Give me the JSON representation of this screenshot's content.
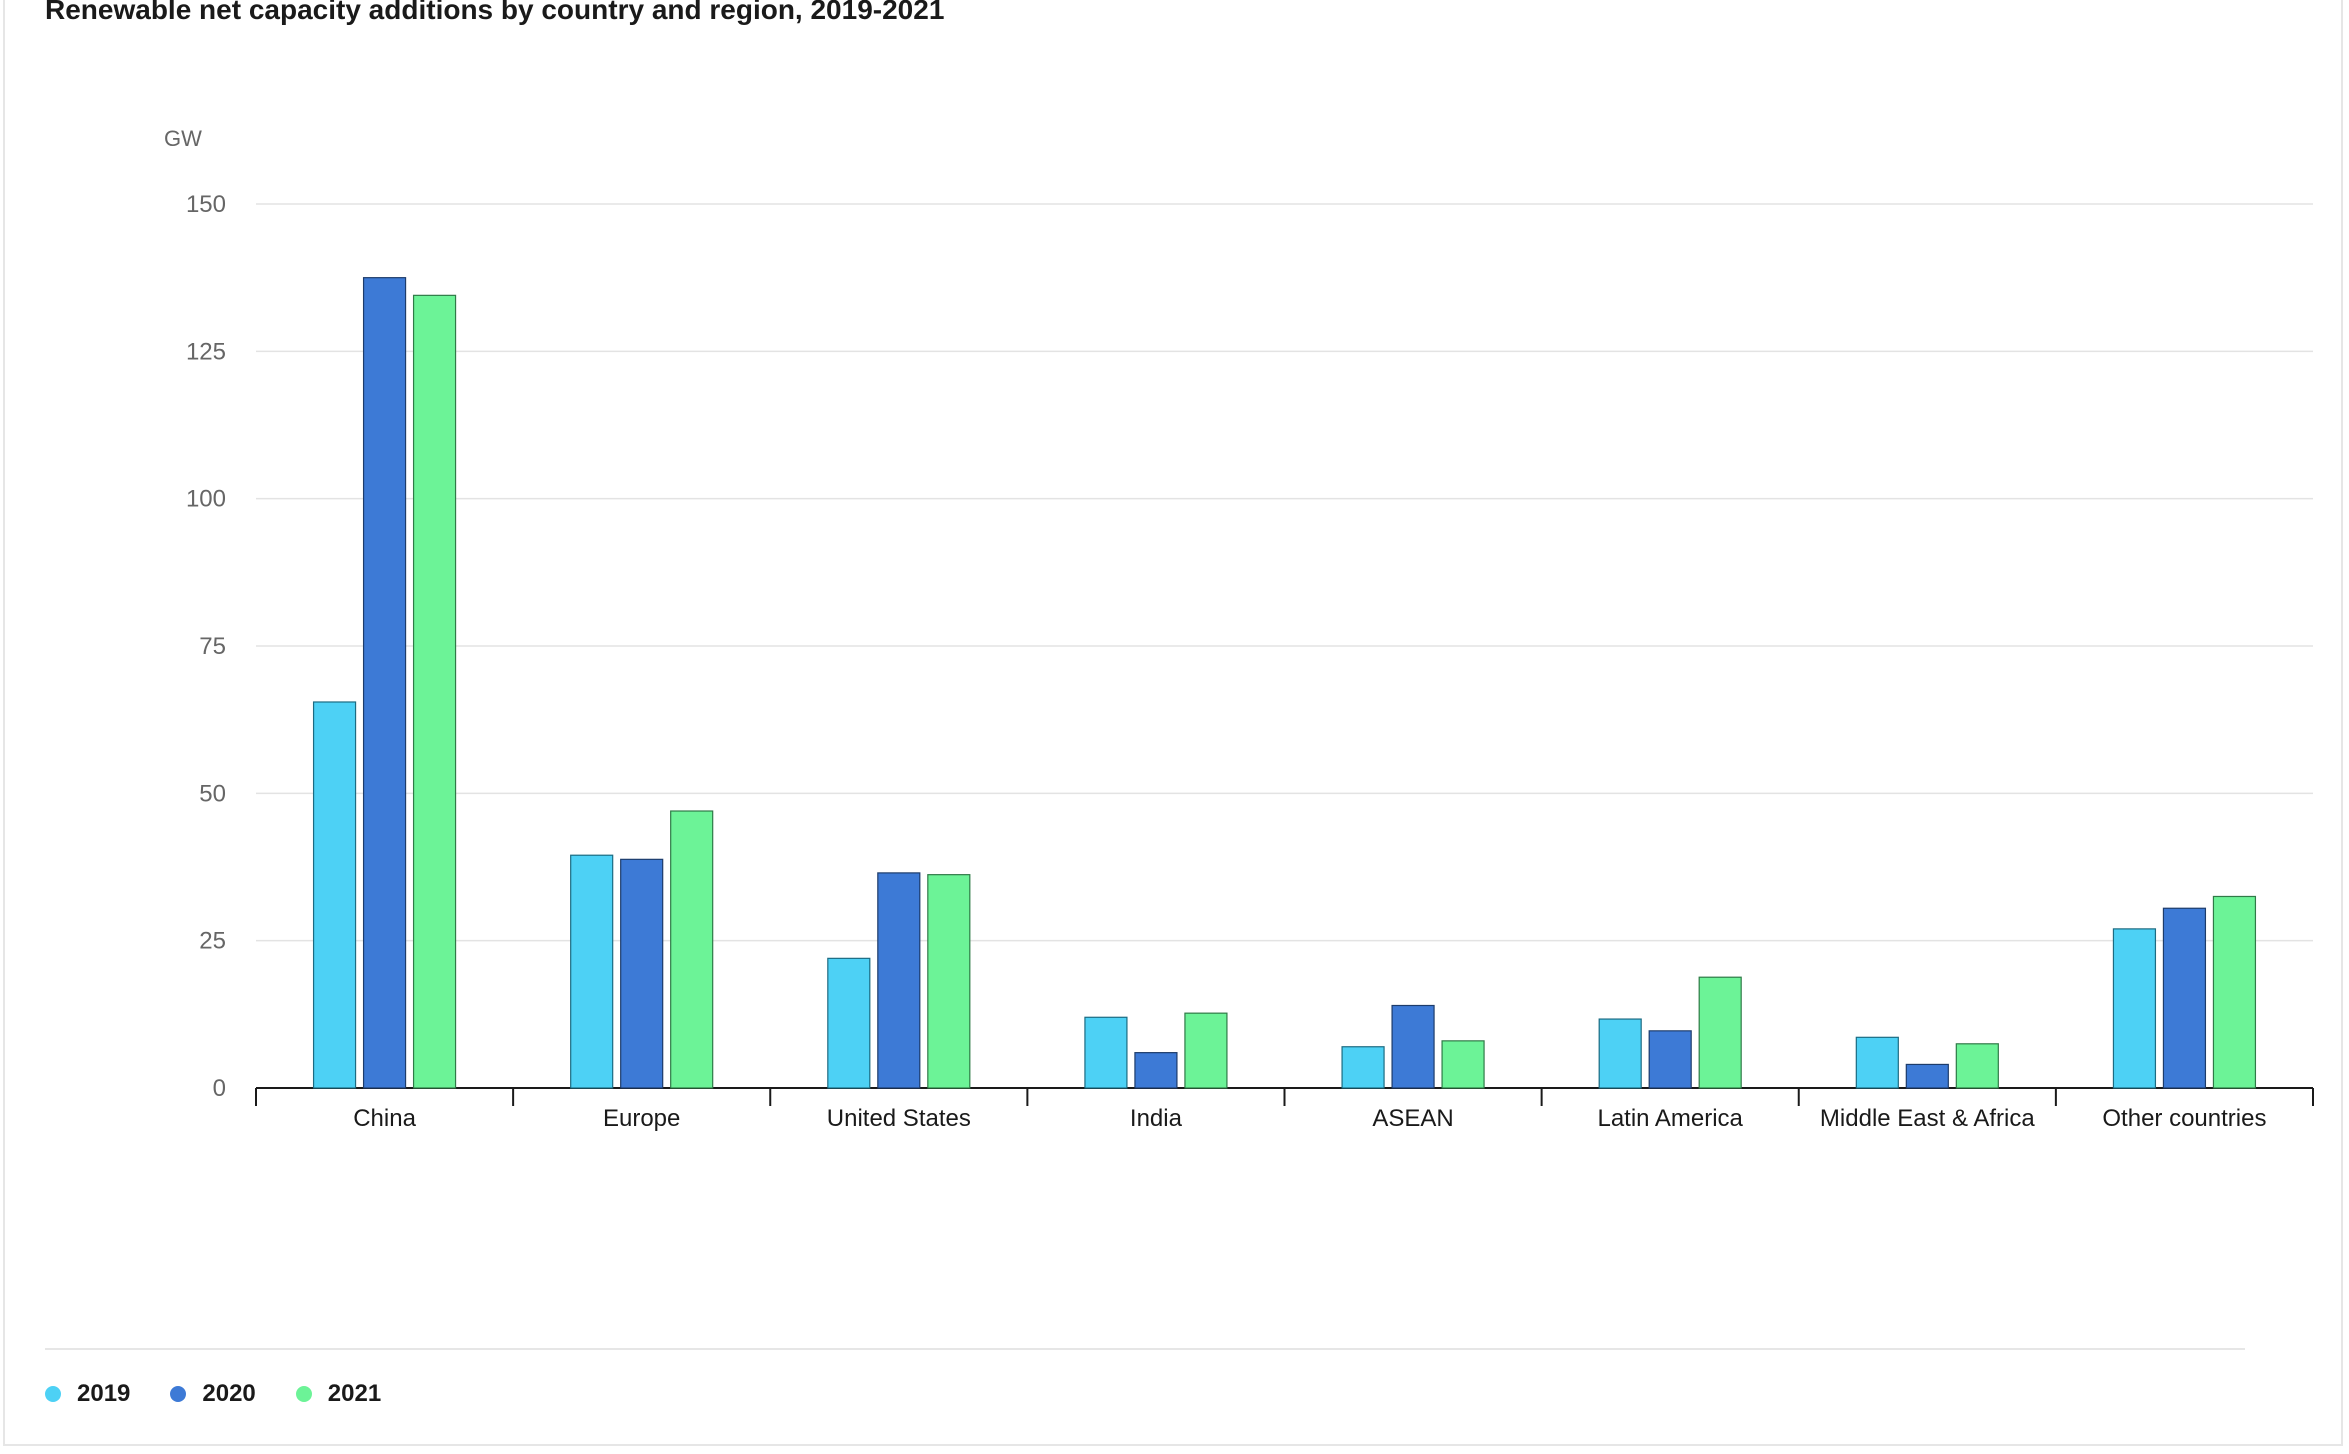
{
  "chart_data": {
    "type": "bar",
    "title": "Renewable net capacity additions by country and region, 2019-2021",
    "ylabel": "GW",
    "xlabel": "",
    "ylim": [
      0,
      150
    ],
    "yticks": [
      0,
      25,
      50,
      75,
      100,
      125,
      150
    ],
    "grid": true,
    "legend_position": "bottom-left",
    "categories": [
      "China",
      "Europe",
      "United States",
      "India",
      "ASEAN",
      "Latin America",
      "Middle East & Africa",
      "Other countries"
    ],
    "series": [
      {
        "name": "2019",
        "color": "#4dd1f5",
        "values": [
          65.5,
          39.5,
          22,
          12,
          7,
          11.7,
          8.6,
          27
        ]
      },
      {
        "name": "2020",
        "color": "#3d7ad6",
        "values": [
          137.5,
          38.8,
          36.5,
          6,
          14,
          9.7,
          4,
          30.5
        ]
      },
      {
        "name": "2021",
        "color": "#6cf397",
        "values": [
          134.5,
          47,
          36.2,
          12.7,
          8,
          18.8,
          7.5,
          32.5
        ]
      }
    ]
  }
}
